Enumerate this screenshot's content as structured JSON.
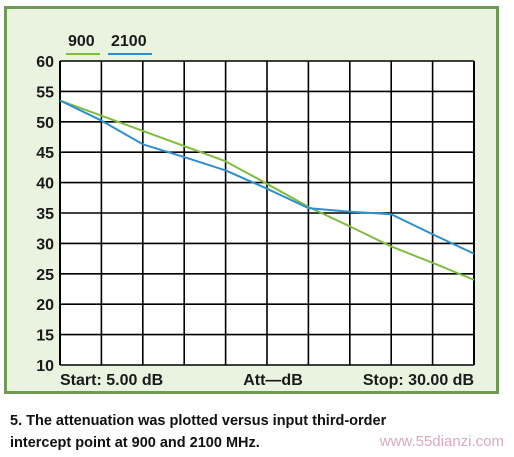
{
  "chart_data": {
    "type": "line",
    "x": [
      5.0,
      7.5,
      10.0,
      12.5,
      15.0,
      17.5,
      20.0,
      22.5,
      25.0,
      27.5,
      30.0
    ],
    "series": [
      {
        "name": "900",
        "color": "#7fbd3f",
        "values": [
          53.5,
          51.0,
          48.5,
          46.0,
          43.5,
          39.8,
          36.0,
          32.8,
          29.5,
          26.8,
          24.0
        ]
      },
      {
        "name": "2100",
        "color": "#2e8fcf",
        "values": [
          53.5,
          50.2,
          46.3,
          44.2,
          42.0,
          39.0,
          35.8,
          35.2,
          34.8,
          31.5,
          28.3
        ]
      }
    ],
    "y_ticks": [
      "60",
      "55",
      "50",
      "45",
      "40",
      "35",
      "30",
      "25",
      "20",
      "15",
      "10"
    ],
    "ylim": [
      10,
      60
    ],
    "xlim": [
      5,
      30
    ],
    "x_divisions": 10,
    "grid": true,
    "legend_position": "top-left",
    "x_start_label": "Start: 5.00 dB",
    "x_mid_label": "Att—dB",
    "x_stop_label": "Stop: 30.00 dB"
  },
  "caption": {
    "line1": "5. The attenuation was plotted versus input third-order",
    "line2": "intercept point at 900 and 2100 MHz."
  },
  "watermark": "www.55dianzi.com"
}
